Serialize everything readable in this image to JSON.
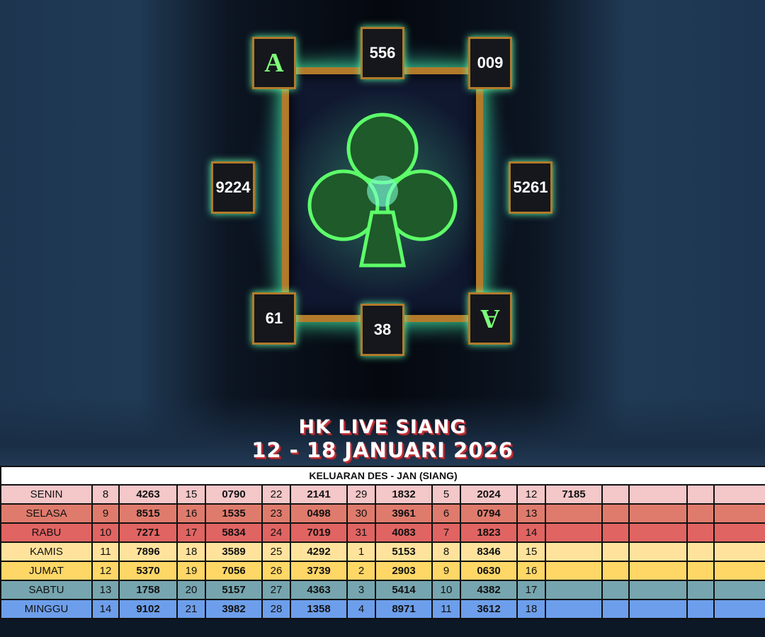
{
  "cards": {
    "top_left": "A",
    "top": "556",
    "top_right": "009",
    "left": "9224",
    "right": "5261",
    "bottom_left": "61",
    "bottom": "38",
    "bottom_right": "A"
  },
  "title": {
    "line1": "HK LIVE SIANG",
    "line2": "12 - 18 JANUARI 2026"
  },
  "table": {
    "header": "KELUARAN DES - JAN (SIANG)",
    "rows": [
      {
        "day": "SENIN",
        "color": "#f4c7c9",
        "cells": [
          "8",
          "4263",
          "15",
          "0790",
          "22",
          "2141",
          "29",
          "1832",
          "5",
          "2024",
          "12",
          "7185",
          "",
          "",
          "",
          ""
        ]
      },
      {
        "day": "SELASA",
        "color": "#df7b6d",
        "cells": [
          "9",
          "8515",
          "16",
          "1535",
          "23",
          "0498",
          "30",
          "3961",
          "6",
          "0794",
          "13",
          "",
          "",
          "",
          "",
          ""
        ]
      },
      {
        "day": "RABU",
        "color": "#e06462",
        "cells": [
          "10",
          "7271",
          "17",
          "5834",
          "24",
          "7019",
          "31",
          "4083",
          "7",
          "1823",
          "14",
          "",
          "",
          "",
          "",
          ""
        ]
      },
      {
        "day": "KAMIS",
        "color": "#ffe39c",
        "cells": [
          "11",
          "7896",
          "18",
          "3589",
          "25",
          "4292",
          "1",
          "5153",
          "8",
          "8346",
          "15",
          "",
          "",
          "",
          "",
          ""
        ]
      },
      {
        "day": "JUMAT",
        "color": "#ffd766",
        "cells": [
          "12",
          "5370",
          "19",
          "7056",
          "26",
          "3739",
          "2",
          "2903",
          "9",
          "0630",
          "16",
          "",
          "",
          "",
          "",
          ""
        ]
      },
      {
        "day": "SABTU",
        "color": "#76a5af",
        "cells": [
          "13",
          "1758",
          "20",
          "5157",
          "27",
          "4363",
          "3",
          "5414",
          "10",
          "4382",
          "17",
          "",
          "",
          "",
          "",
          ""
        ]
      },
      {
        "day": "MINGGU",
        "color": "#6d9eeb",
        "cells": [
          "14",
          "9102",
          "21",
          "3982",
          "28",
          "1358",
          "4",
          "8971",
          "11",
          "3612",
          "18",
          "",
          "",
          "",
          "",
          ""
        ]
      }
    ]
  }
}
